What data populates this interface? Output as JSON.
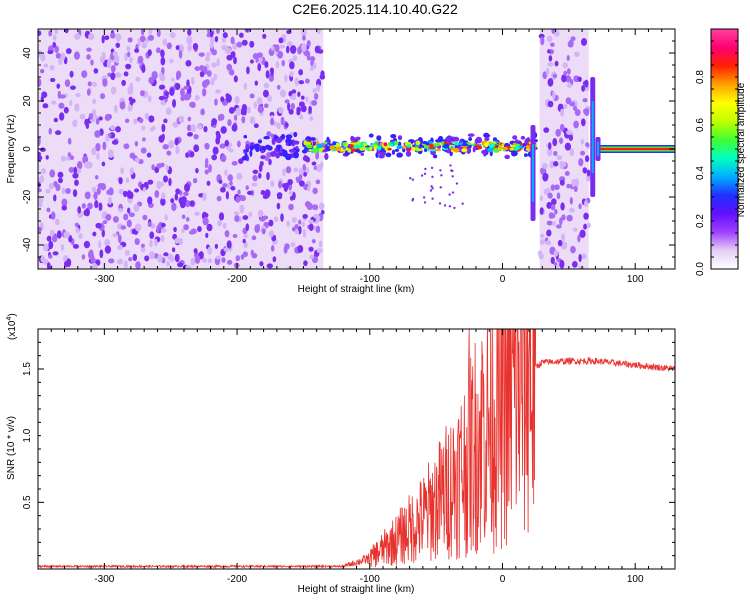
{
  "title": "C2E6.2025.114.10.40.G22",
  "chart_data": [
    {
      "type": "heatmap",
      "xlabel": "Height of straight line (km)",
      "ylabel": "Frequency (Hz)",
      "xlim": [
        -350,
        130
      ],
      "ylim": [
        -50,
        50
      ],
      "xticks": [
        -300,
        -200,
        -100,
        0,
        100
      ],
      "yticks": [
        -40,
        -20,
        0,
        20,
        40
      ],
      "colorbar": {
        "label": "Normalized spectral amplitude",
        "range": [
          0,
          1
        ],
        "ticks": [
          0.0,
          0.2,
          0.4,
          0.6,
          0.8
        ],
        "tick_labels": [
          "0.0",
          "0.2",
          "0.4",
          "0.6",
          "0.8"
        ],
        "colors": [
          "#ffffff",
          "#e4d0f6",
          "#a040ff",
          "#6010ff",
          "#2030ff",
          "#00b0ff",
          "#00ffc0",
          "#40ff30",
          "#c0ff00",
          "#ffff00",
          "#ffa000",
          "#ff2000",
          "#ff0070",
          "#ff40a0"
        ]
      },
      "regions": [
        {
          "name": "noise",
          "x_range": [
            -350,
            -135
          ],
          "freq_range": [
            -50,
            50
          ],
          "amplitude": 0.15
        },
        {
          "name": "signal track",
          "x_range": [
            -195,
            25
          ],
          "center_freq": 1,
          "amplitude": 0.5
        },
        {
          "name": "noise",
          "x_range": [
            28,
            65
          ],
          "freq_range": [
            -50,
            50
          ],
          "amplitude": 0.15
        },
        {
          "name": "steady carrier",
          "x_range": [
            72,
            130
          ],
          "center_freq": 0,
          "amplitude": 0.95
        }
      ],
      "features": [
        {
          "type": "spike",
          "x": 23,
          "freq_range": [
            -30,
            10
          ]
        },
        {
          "type": "spike",
          "x": 68,
          "freq_range": [
            -20,
            30
          ]
        },
        {
          "type": "spike",
          "x": 72,
          "freq_range": [
            -5,
            5
          ]
        }
      ]
    },
    {
      "type": "line",
      "xlabel": "Height of straight line (km)",
      "ylabel": "SNR (10 * v/v)",
      "scale_label": "(x10",
      "scale_exponent": "4",
      "xlim": [
        -350,
        130
      ],
      "ylim": [
        0,
        1.8
      ],
      "xticks": [
        -300,
        -200,
        -100,
        0,
        100
      ],
      "yticks": [
        0.5,
        1.0,
        1.5
      ],
      "ytick_labels": [
        "0.5",
        "1.0",
        "1.5"
      ],
      "color": "#e8322e",
      "envelope": {
        "x": [
          -350,
          -120,
          -100,
          -80,
          -60,
          -45,
          -30,
          -20,
          -10,
          0,
          10,
          20,
          30,
          50,
          70,
          90,
          110,
          130
        ],
        "y": [
          0.02,
          0.02,
          0.08,
          0.22,
          0.38,
          0.55,
          0.75,
          0.95,
          1.1,
          1.2,
          1.35,
          1.48,
          1.55,
          1.56,
          1.56,
          1.54,
          1.52,
          1.5
        ]
      },
      "peaks": [
        {
          "x": -25,
          "y": 1.82
        },
        {
          "x": -15,
          "y": 1.6
        },
        {
          "x": 20,
          "y": 1.65
        }
      ]
    }
  ]
}
